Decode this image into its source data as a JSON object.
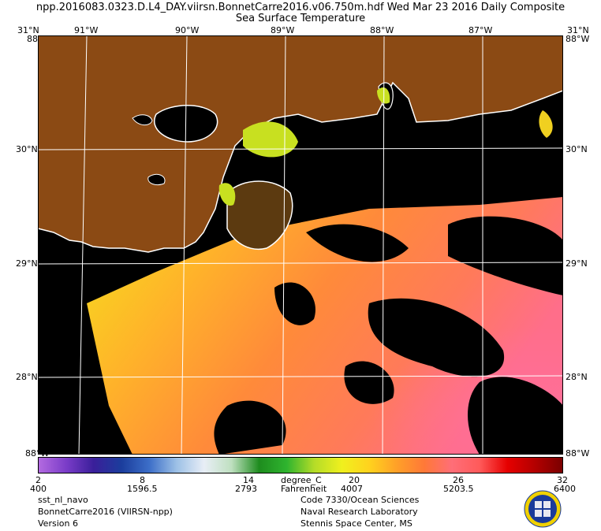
{
  "header": {
    "title": "npp.2016083.0323.D.L4_DAY.viirsn.BonnetCarre2016.v06.750m.hdf   Wed Mar 23 2016 Daily Composite",
    "subtitle": "Sea Surface Temperature"
  },
  "map": {
    "top_lon_labels": [
      "91°W",
      "90°W",
      "89°W",
      "88°W",
      "87°W"
    ],
    "corner_top_left": "31°N",
    "corner_top_right": "31°N",
    "edge_left_top": "88°W",
    "edge_right_top": "88°W",
    "lat_labels": [
      "30°N",
      "29°N",
      "28°N"
    ],
    "edge_bottom_left": "88°W",
    "edge_bottom_right": "88°W",
    "colors": {
      "land": "#8B4A14",
      "no_data": "#000000",
      "coast": "#ffffff",
      "graticule": "#ffffff"
    }
  },
  "colorbar": {
    "celsius_ticks": [
      "2",
      "8",
      "14",
      "20",
      "26",
      "32"
    ],
    "fahrenheit_ticks": [
      "400",
      "1596.5",
      "2793",
      "4007",
      "5203.5",
      "6400"
    ],
    "unit_c": "degree_C",
    "unit_f": "Fahrenheit",
    "range_c": [
      2,
      32
    ],
    "colors": [
      "#b36ae0",
      "#7a3cc8",
      "#3a1f9a",
      "#1b3d9c",
      "#3c6ec8",
      "#9cc0e6",
      "#e8eef6",
      "#bfe0c0",
      "#1e8c1e",
      "#2fb42f",
      "#b4dc28",
      "#f0f01e",
      "#ffd21e",
      "#ffa028",
      "#ff7838",
      "#ff6e78",
      "#ff5a5a",
      "#e60000",
      "#b40000",
      "#7a0000"
    ]
  },
  "footer": {
    "left_lines": [
      "sst_nl_navo",
      "BonnetCarre2016 (VIIRSN-npp)",
      "Version 6"
    ],
    "center_lines": [
      "Code 7330/Ocean Sciences",
      "Naval Research Laboratory",
      "Stennis Space Center, MS"
    ]
  }
}
